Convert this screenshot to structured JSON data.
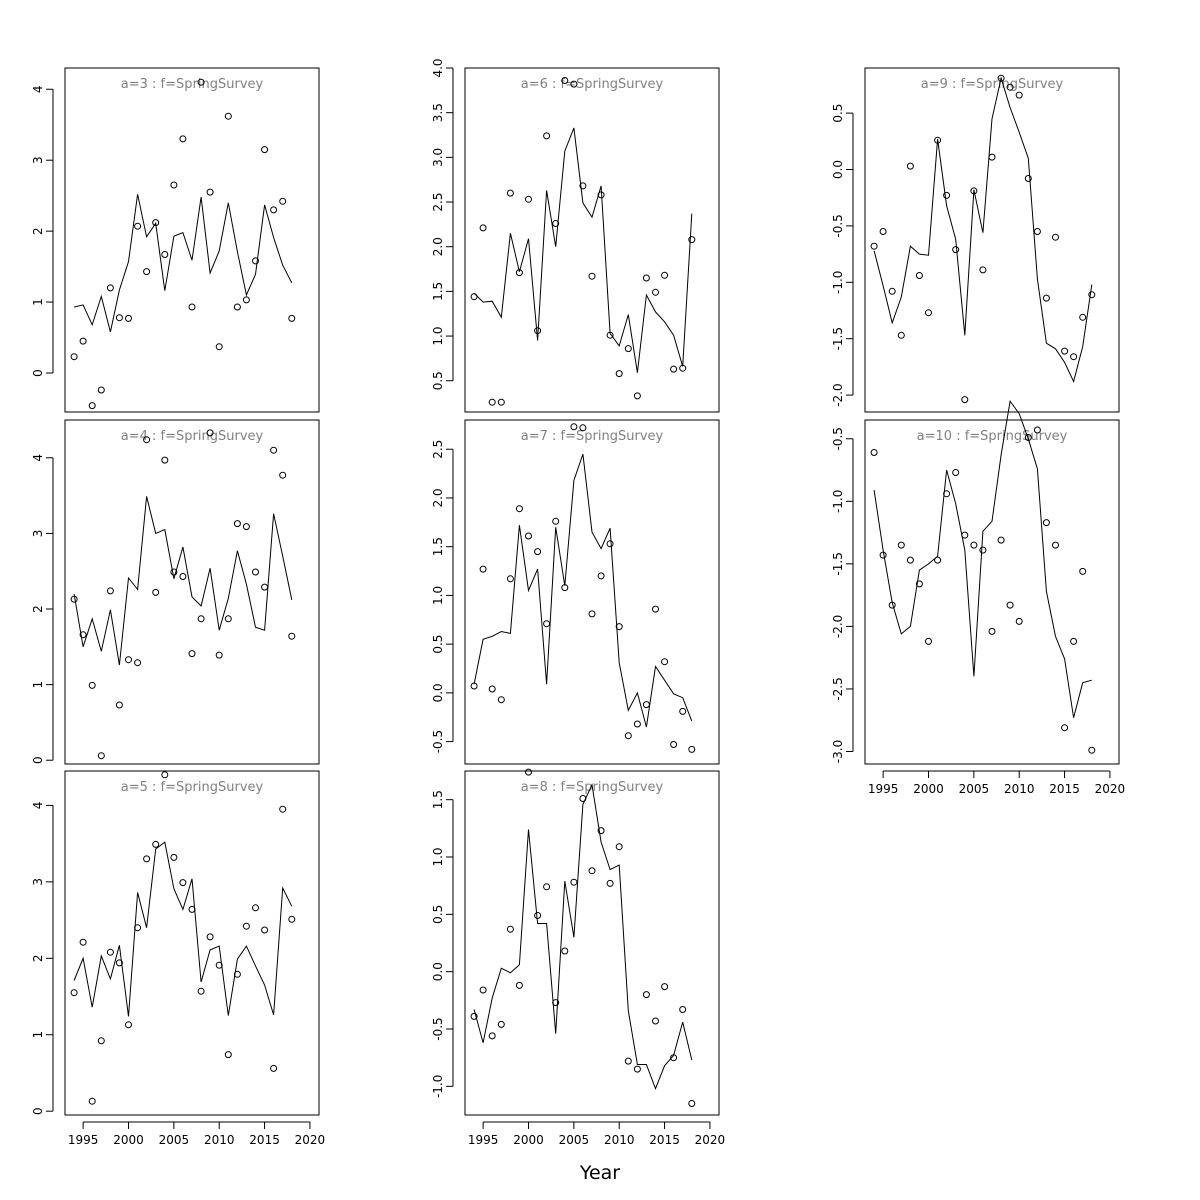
{
  "chart_data": {
    "type": "scatter",
    "xlabel": "Year",
    "x_ticks": [
      1995,
      2000,
      2005,
      2010,
      2015,
      2020
    ],
    "xlim": [
      1993,
      2021
    ],
    "x": [
      1994,
      1995,
      1996,
      1997,
      1998,
      1999,
      2000,
      2001,
      2002,
      2003,
      2004,
      2005,
      2006,
      2007,
      2008,
      2009,
      2010,
      2011,
      2012,
      2013,
      2014,
      2015,
      2016,
      2017,
      2018
    ],
    "panels": [
      {
        "title": "a=3  :  f=SpringSurvey",
        "ylim": [
          -0.55,
          4.3
        ],
        "y_ticks": [
          0,
          1,
          2,
          3,
          4
        ],
        "y_tick_labels": [
          "0",
          "1",
          "2",
          "3",
          "4"
        ],
        "observed": [
          0.23,
          0.45,
          -0.46,
          -0.24,
          1.2,
          0.78,
          0.77,
          2.07,
          1.43,
          2.12,
          1.67,
          2.65,
          3.3,
          0.93,
          4.1,
          2.55,
          0.37,
          3.62,
          0.93,
          1.03,
          1.58,
          3.15,
          2.3,
          2.42,
          0.77
        ],
        "fitted": [
          0.93,
          0.96,
          0.68,
          1.08,
          0.58,
          1.17,
          1.57,
          2.52,
          1.92,
          2.11,
          1.16,
          1.93,
          1.98,
          1.59,
          2.48,
          1.41,
          1.72,
          2.4,
          1.71,
          1.1,
          1.39,
          2.37,
          1.91,
          1.52,
          1.27
        ]
      },
      {
        "title": "a=6  :  f=SpringSurvey",
        "ylim": [
          0.15,
          4.0
        ],
        "y_ticks": [
          0.5,
          1.0,
          1.5,
          2.0,
          2.5,
          3.0,
          3.5,
          4.0
        ],
        "y_tick_labels": [
          "0.5",
          "1.0",
          "1.5",
          "2.0",
          "2.5",
          "3.0",
          "3.5",
          "4.0"
        ],
        "observed": [
          1.44,
          2.21,
          0.26,
          0.26,
          2.6,
          1.71,
          2.53,
          1.06,
          3.24,
          2.26,
          3.86,
          3.82,
          2.68,
          1.67,
          2.58,
          1.01,
          0.58,
          0.86,
          0.33,
          1.65,
          1.49,
          1.68,
          0.63,
          0.64,
          2.08
        ],
        "fitted": [
          1.48,
          1.38,
          1.39,
          1.21,
          2.15,
          1.72,
          2.09,
          0.95,
          2.63,
          2.0,
          3.07,
          3.33,
          2.49,
          2.33,
          2.68,
          1.03,
          0.89,
          1.24,
          0.59,
          1.46,
          1.27,
          1.16,
          1.01,
          0.66,
          2.37
        ]
      },
      {
        "title": "a=9  :  f=SpringSurvey",
        "ylim": [
          -2.15,
          0.9
        ],
        "y_ticks": [
          -2.0,
          -1.5,
          -1.0,
          -0.5,
          0.0,
          0.5
        ],
        "y_tick_labels": [
          "-2.0",
          "-1.5",
          "-1.0",
          "-0.5",
          "0.0",
          "0.5"
        ],
        "observed": [
          -0.68,
          -0.55,
          -1.08,
          -1.47,
          0.03,
          -0.94,
          -1.27,
          0.26,
          -0.23,
          -0.71,
          -2.04,
          -0.19,
          -0.89,
          0.11,
          0.81,
          0.73,
          0.66,
          -0.08,
          -0.55,
          -1.14,
          -0.6,
          -1.61,
          -1.66,
          -1.31,
          -1.11
        ],
        "fitted": [
          -0.72,
          -1.03,
          -1.36,
          -1.13,
          -0.68,
          -0.75,
          -0.76,
          0.27,
          -0.32,
          -0.62,
          -1.47,
          -0.18,
          -0.56,
          0.45,
          0.81,
          0.55,
          0.33,
          0.1,
          -0.97,
          -1.54,
          -1.59,
          -1.71,
          -1.88,
          -1.57,
          -1.02
        ]
      },
      {
        "title": "a=4  :  f=SpringSurvey",
        "ylim": [
          -0.05,
          4.5
        ],
        "y_ticks": [
          0,
          1,
          2,
          3,
          4
        ],
        "y_tick_labels": [
          "0",
          "1",
          "2",
          "3",
          "4"
        ],
        "observed": [
          2.13,
          1.66,
          0.99,
          0.06,
          2.24,
          0.73,
          1.33,
          1.29,
          4.24,
          2.22,
          3.97,
          2.49,
          2.43,
          1.41,
          1.87,
          4.33,
          1.39,
          1.87,
          3.13,
          3.09,
          2.49,
          2.29,
          4.1,
          3.77,
          1.64
        ],
        "fitted": [
          2.2,
          1.5,
          1.87,
          1.44,
          1.99,
          1.26,
          2.41,
          2.26,
          3.49,
          3.0,
          3.05,
          2.4,
          2.82,
          2.16,
          2.04,
          2.54,
          1.72,
          2.14,
          2.77,
          2.33,
          1.76,
          1.72,
          3.26,
          2.7,
          2.12
        ]
      },
      {
        "title": "a=7  :  f=SpringSurvey",
        "ylim": [
          -0.73,
          2.8
        ],
        "y_ticks": [
          -0.5,
          0.0,
          0.5,
          1.0,
          1.5,
          2.0,
          2.5
        ],
        "y_tick_labels": [
          "-0.5",
          "0.0",
          "0.5",
          "1.0",
          "1.5",
          "2.0",
          "2.5"
        ],
        "observed": [
          0.07,
          1.27,
          0.04,
          -0.07,
          1.17,
          1.89,
          1.61,
          1.45,
          0.71,
          1.76,
          1.08,
          2.73,
          2.72,
          0.81,
          1.2,
          1.53,
          0.68,
          -0.44,
          -0.32,
          -0.12,
          0.86,
          0.32,
          -0.53,
          -0.19,
          -0.58
        ],
        "fitted": [
          0.09,
          0.55,
          0.58,
          0.63,
          0.61,
          1.72,
          1.05,
          1.27,
          0.09,
          1.7,
          1.1,
          2.18,
          2.45,
          1.65,
          1.48,
          1.69,
          0.31,
          -0.18,
          0.0,
          -0.35,
          0.27,
          0.13,
          -0.01,
          -0.05,
          -0.29
        ]
      },
      {
        "title": "a=10  :  f=SpringSurvey",
        "ylim": [
          -3.1,
          -0.35
        ],
        "y_ticks": [
          -3.0,
          -2.5,
          -2.0,
          -1.5,
          -1.0,
          -0.5
        ],
        "y_tick_labels": [
          "-3.0",
          "-2.5",
          "-2.0",
          "-1.5",
          "-1.0",
          "-0.5"
        ],
        "observed": [
          -0.61,
          -1.43,
          -1.83,
          -1.35,
          -1.47,
          -1.66,
          -2.12,
          -1.47,
          -0.94,
          -0.77,
          -1.27,
          -1.35,
          -1.39,
          -2.04,
          -1.31,
          -1.83,
          -1.96,
          -0.49,
          -0.43,
          -1.17,
          -1.35,
          -2.81,
          -2.12,
          -1.56,
          -2.99
        ],
        "fitted": [
          -0.91,
          -1.39,
          -1.81,
          -2.06,
          -2.0,
          -1.55,
          -1.5,
          -1.44,
          -0.75,
          -1.02,
          -1.39,
          -2.4,
          -1.24,
          -1.16,
          -0.63,
          -0.2,
          -0.3,
          -0.5,
          -0.74,
          -1.72,
          -2.08,
          -2.26,
          -2.73,
          -2.45,
          -2.43
        ]
      },
      {
        "title": "a=5  :  f=SpringSurvey",
        "ylim": [
          -0.05,
          4.45
        ],
        "y_ticks": [
          0,
          1,
          2,
          3,
          4
        ],
        "y_tick_labels": [
          "0",
          "1",
          "2",
          "3",
          "4"
        ],
        "observed": [
          1.55,
          2.21,
          0.13,
          0.92,
          2.08,
          1.94,
          1.13,
          2.4,
          3.3,
          3.49,
          4.4,
          3.32,
          2.99,
          2.64,
          1.57,
          2.28,
          1.91,
          0.74,
          1.79,
          2.42,
          2.66,
          2.37,
          0.56,
          3.95,
          2.51
        ],
        "fitted": [
          1.71,
          2.0,
          1.36,
          2.03,
          1.73,
          2.17,
          1.24,
          2.86,
          2.4,
          3.43,
          3.52,
          2.91,
          2.64,
          3.04,
          1.69,
          2.11,
          2.16,
          1.25,
          1.99,
          2.16,
          1.9,
          1.65,
          1.26,
          2.92,
          2.68
        ]
      },
      {
        "title": "a=8  :  f=SpringSurvey",
        "ylim": [
          -1.25,
          1.75
        ],
        "y_ticks": [
          -1.0,
          -0.5,
          0.0,
          0.5,
          1.0,
          1.5
        ],
        "y_tick_labels": [
          "-1.0",
          "-0.5",
          "0.0",
          "0.5",
          "1.0",
          "1.5"
        ],
        "observed": [
          -0.39,
          -0.16,
          -0.56,
          -0.46,
          0.37,
          -0.12,
          1.74,
          0.49,
          0.74,
          -0.27,
          0.18,
          0.78,
          1.51,
          0.88,
          1.23,
          0.77,
          1.09,
          -0.78,
          -0.85,
          -0.2,
          -0.43,
          -0.13,
          -0.75,
          -0.33,
          -1.15
        ],
        "fitted": [
          -0.33,
          -0.62,
          -0.23,
          0.03,
          -0.01,
          0.06,
          1.24,
          0.42,
          0.42,
          -0.54,
          0.79,
          0.3,
          1.46,
          1.63,
          1.13,
          0.89,
          0.93,
          -0.34,
          -0.81,
          -0.81,
          -1.02,
          -0.82,
          -0.73,
          -0.44,
          -0.77
        ]
      }
    ]
  }
}
